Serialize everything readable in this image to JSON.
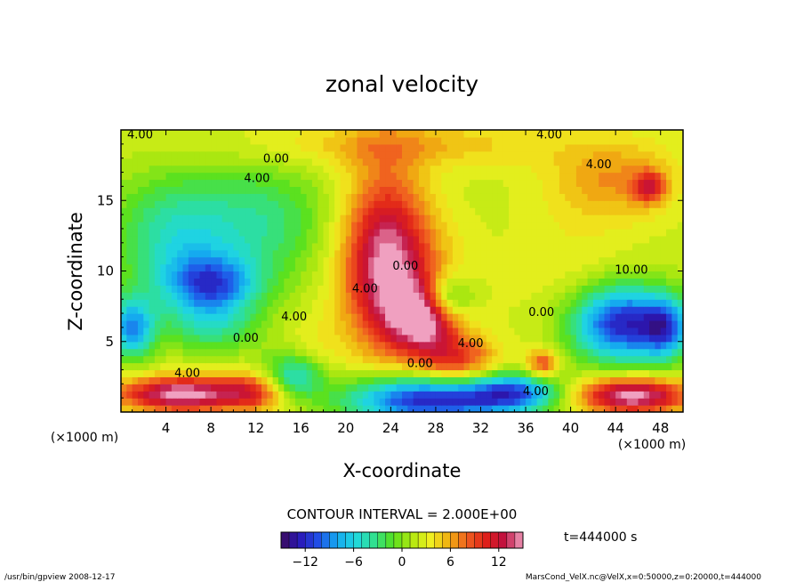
{
  "chart_data": {
    "type": "heatmap",
    "title": "zonal velocity",
    "xlabel": "X-coordinate",
    "ylabel": "Z-coordinate",
    "x_unit": "(×1000 m)",
    "z_unit": "(×1000 m)",
    "xlim": [
      0,
      50
    ],
    "ylim": [
      0,
      20
    ],
    "x_ticks": [
      4,
      8,
      12,
      16,
      20,
      24,
      28,
      32,
      36,
      40,
      44,
      48
    ],
    "y_ticks": [
      5,
      10,
      15
    ],
    "contour_interval_text": "CONTOUR INTERVAL = 2.000E+00",
    "time_text": "t=444000 s",
    "colorbar": {
      "min": -15,
      "max": 15,
      "step": 1,
      "tick_values": [
        -12,
        -6,
        0,
        6,
        12
      ],
      "tick_labels": [
        "−12",
        "−6",
        "0",
        "6",
        "12"
      ]
    },
    "contour_labels": [
      {
        "text": "4.00",
        "x": 1.7,
        "z": 19.4
      },
      {
        "text": "4.00",
        "x": 38.1,
        "z": 19.4
      },
      {
        "text": "0.00",
        "x": 13.8,
        "z": 17.7
      },
      {
        "text": "4.00",
        "x": 12.1,
        "z": 16.3
      },
      {
        "text": "4.00",
        "x": 42.5,
        "z": 17.3
      },
      {
        "text": "10.00",
        "x": 45.4,
        "z": 9.8
      },
      {
        "text": "0.00",
        "x": 25.3,
        "z": 10.1
      },
      {
        "text": "4.00",
        "x": 21.7,
        "z": 8.5
      },
      {
        "text": "4.00",
        "x": 15.4,
        "z": 6.5
      },
      {
        "text": "0.00",
        "x": 11.1,
        "z": 5.0
      },
      {
        "text": "0.00",
        "x": 37.4,
        "z": 6.8
      },
      {
        "text": "4.00",
        "x": 31.1,
        "z": 4.6
      },
      {
        "text": "0.00",
        "x": 26.6,
        "z": 3.2
      },
      {
        "text": "4.00",
        "x": 5.9,
        "z": 2.5
      },
      {
        "text": "4.00",
        "x": 36.9,
        "z": 1.2
      }
    ],
    "field_features": [
      {
        "x": 23.5,
        "z": 11.5,
        "value": 10,
        "sx": 2.6,
        "sz": 4.5
      },
      {
        "x": 27.2,
        "z": 6.7,
        "value": 12,
        "sx": 2.2,
        "sz": 1.6
      },
      {
        "x": 25.0,
        "z": 9.0,
        "value": 6,
        "sx": 3.5,
        "sz": 3.5
      },
      {
        "x": 30.0,
        "z": 3.6,
        "value": 8,
        "sx": 2.5,
        "sz": 1.2
      },
      {
        "x": 44.5,
        "z": 6.3,
        "value": -14,
        "sx": 3.2,
        "sz": 1.9
      },
      {
        "x": 48.5,
        "z": 6.0,
        "value": -8,
        "sx": 1.5,
        "sz": 1.5
      },
      {
        "x": 29.0,
        "z": 8.0,
        "value": -8,
        "sx": 1.6,
        "sz": 1.2
      },
      {
        "x": 8.0,
        "z": 9.0,
        "value": -10,
        "sx": 3.0,
        "sz": 1.5
      },
      {
        "x": 5.0,
        "z": 12.5,
        "value": -6,
        "sx": 4.0,
        "sz": 3.0
      },
      {
        "x": 13.0,
        "z": 13.5,
        "value": -4,
        "sx": 4.0,
        "sz": 3.0
      },
      {
        "x": 1.0,
        "z": 6.0,
        "value": -10,
        "sx": 1.4,
        "sz": 1.5
      },
      {
        "x": 8.0,
        "z": 6.0,
        "value": -4,
        "sx": 3.0,
        "sz": 1.3
      },
      {
        "x": 5.5,
        "z": 1.3,
        "value": 14,
        "sx": 4.0,
        "sz": 0.9
      },
      {
        "x": 12.0,
        "z": 1.5,
        "value": 7,
        "sx": 2.0,
        "sz": 1.0
      },
      {
        "x": 15.5,
        "z": 2.6,
        "value": -8,
        "sx": 2.0,
        "sz": 1.2
      },
      {
        "x": 27.0,
        "z": 0.9,
        "value": -14,
        "sx": 5.0,
        "sz": 1.2
      },
      {
        "x": 35.0,
        "z": 1.4,
        "value": -10,
        "sx": 3.0,
        "sz": 1.0
      },
      {
        "x": 45.5,
        "z": 1.2,
        "value": 14,
        "sx": 3.5,
        "sz": 0.9
      },
      {
        "x": 25.0,
        "z": 19.0,
        "value": 4,
        "sx": 10.0,
        "sz": 1.2
      },
      {
        "x": 44.0,
        "z": 16.5,
        "value": 5,
        "sx": 4.0,
        "sz": 2.0
      },
      {
        "x": 47.0,
        "z": 16.0,
        "value": 8,
        "sx": 1.0,
        "sz": 0.8
      },
      {
        "x": 37.5,
        "z": 3.4,
        "value": 8,
        "sx": 1.0,
        "sz": 0.7
      },
      {
        "x": 40.0,
        "z": 10.0,
        "value": 2,
        "sx": 4.0,
        "sz": 4.0
      },
      {
        "x": 17.0,
        "z": 3.5,
        "value": 3,
        "sx": 2.0,
        "sz": 2.0
      }
    ],
    "background_value": 2,
    "colormap_stops": [
      "#3a0a5c",
      "#2a18b8",
      "#2050e8",
      "#15a8f0",
      "#20d8e0",
      "#30e090",
      "#55e020",
      "#b0e810",
      "#f0f020",
      "#f0b010",
      "#f06020",
      "#e02018",
      "#c01040",
      "#f0a0c0"
    ]
  },
  "footer": {
    "left": "/usr/bin/gpview   2008-12-17",
    "right": "MarsCond_VelX.nc@VelX,x=0:50000,z=0:20000,t=444000"
  }
}
